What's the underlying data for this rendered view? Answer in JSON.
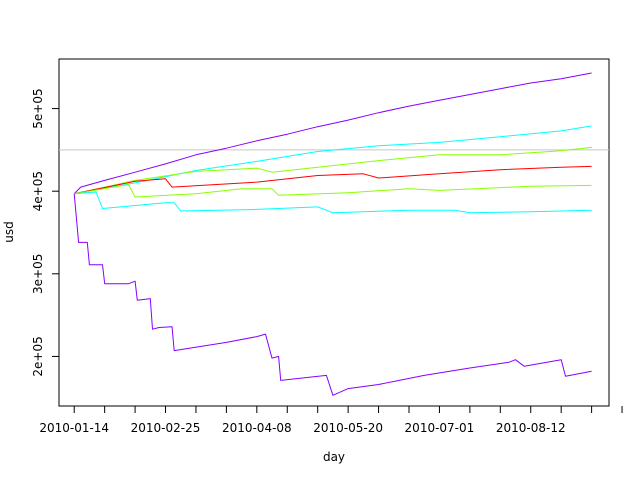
{
  "chart_data": {
    "type": "line",
    "title": "",
    "xlabel": "day",
    "ylabel": "usd",
    "x_ticks": [
      "2010-01-14",
      "2010-02-25",
      "2010-04-08",
      "2010-05-20",
      "2010-07-01",
      "2010-08-12"
    ],
    "y_ticks": [
      {
        "value": 200000,
        "label": "2e+05"
      },
      {
        "value": 300000,
        "label": "3e+05"
      },
      {
        "value": 400000,
        "label": "4e+05"
      },
      {
        "value": 500000,
        "label": "5e+05"
      }
    ],
    "xlim": [
      "2010-01-07",
      "2010-09-17"
    ],
    "ylim": [
      140000,
      560000
    ],
    "grid": false,
    "legend": "none",
    "reference_line": {
      "value": 450000,
      "color": "#c8c8c8"
    },
    "series": [
      {
        "color": "#8800ff",
        "points": [
          [
            "2010-01-14",
            397000
          ],
          [
            "2010-01-17",
            405000
          ],
          [
            "2010-01-28",
            413000
          ],
          [
            "2010-02-11",
            423000
          ],
          [
            "2010-02-25",
            433000
          ],
          [
            "2010-03-11",
            444000
          ],
          [
            "2010-03-25",
            452000
          ],
          [
            "2010-04-08",
            461000
          ],
          [
            "2010-04-22",
            469000
          ],
          [
            "2010-05-06",
            478000
          ],
          [
            "2010-05-20",
            486000
          ],
          [
            "2010-06-03",
            495000
          ],
          [
            "2010-06-17",
            503000
          ],
          [
            "2010-07-01",
            510000
          ],
          [
            "2010-07-15",
            517000
          ],
          [
            "2010-07-29",
            524000
          ],
          [
            "2010-08-12",
            531000
          ],
          [
            "2010-08-26",
            536000
          ],
          [
            "2010-09-09",
            543000
          ]
        ]
      },
      {
        "color": "#00ffff",
        "points": [
          [
            "2010-01-14",
            397000
          ],
          [
            "2010-02-11",
            410000
          ],
          [
            "2010-03-11",
            425000
          ],
          [
            "2010-04-08",
            436000
          ],
          [
            "2010-05-06",
            448000
          ],
          [
            "2010-06-03",
            455000
          ],
          [
            "2010-07-01",
            459000
          ],
          [
            "2010-07-29",
            466000
          ],
          [
            "2010-08-26",
            473000
          ],
          [
            "2010-09-09",
            479000
          ]
        ]
      },
      {
        "color": "#88ff00",
        "points": [
          [
            "2010-01-14",
            397000
          ],
          [
            "2010-02-11",
            413000
          ],
          [
            "2010-03-11",
            424000
          ],
          [
            "2010-04-08",
            428000
          ],
          [
            "2010-04-15",
            423000
          ],
          [
            "2010-05-06",
            429000
          ],
          [
            "2010-06-03",
            437000
          ],
          [
            "2010-07-01",
            444000
          ],
          [
            "2010-07-29",
            444000
          ],
          [
            "2010-08-26",
            449000
          ],
          [
            "2010-09-09",
            453000
          ]
        ]
      },
      {
        "color": "#ff0000",
        "points": [
          [
            "2010-01-14",
            397000
          ],
          [
            "2010-02-11",
            412000
          ],
          [
            "2010-02-25",
            415000
          ],
          [
            "2010-02-28",
            405000
          ],
          [
            "2010-04-08",
            411000
          ],
          [
            "2010-05-06",
            419000
          ],
          [
            "2010-05-27",
            421000
          ],
          [
            "2010-06-03",
            416000
          ],
          [
            "2010-07-01",
            421000
          ],
          [
            "2010-07-29",
            426000
          ],
          [
            "2010-08-26",
            429000
          ],
          [
            "2010-09-09",
            430000
          ]
        ]
      },
      {
        "color": "#88ff00",
        "points": [
          [
            "2010-01-14",
            397000
          ],
          [
            "2010-02-08",
            408000
          ],
          [
            "2010-02-11",
            393000
          ],
          [
            "2010-03-11",
            397000
          ],
          [
            "2010-04-01",
            403000
          ],
          [
            "2010-04-15",
            403000
          ],
          [
            "2010-04-18",
            395000
          ],
          [
            "2010-05-20",
            398000
          ],
          [
            "2010-06-17",
            403000
          ],
          [
            "2010-07-01",
            401000
          ],
          [
            "2010-08-12",
            406000
          ],
          [
            "2010-09-09",
            407000
          ]
        ]
      },
      {
        "color": "#00ffff",
        "points": [
          [
            "2010-01-14",
            397000
          ],
          [
            "2010-01-24",
            399000
          ],
          [
            "2010-01-27",
            379000
          ],
          [
            "2010-02-25",
            386000
          ],
          [
            "2010-03-01",
            386000
          ],
          [
            "2010-03-04",
            376000
          ],
          [
            "2010-04-08",
            378000
          ],
          [
            "2010-05-06",
            381000
          ],
          [
            "2010-05-13",
            374000
          ],
          [
            "2010-06-17",
            377000
          ],
          [
            "2010-07-08",
            377000
          ],
          [
            "2010-07-15",
            374000
          ],
          [
            "2010-08-12",
            375000
          ],
          [
            "2010-09-09",
            377000
          ]
        ]
      },
      {
        "color": "#8800ff",
        "points": [
          [
            "2010-01-14",
            397000
          ],
          [
            "2010-01-16",
            338000
          ],
          [
            "2010-01-20",
            338000
          ],
          [
            "2010-01-21",
            311000
          ],
          [
            "2010-01-27",
            311000
          ],
          [
            "2010-01-28",
            288000
          ],
          [
            "2010-02-08",
            288000
          ],
          [
            "2010-02-11",
            291000
          ],
          [
            "2010-02-12",
            268000
          ],
          [
            "2010-02-18",
            270000
          ],
          [
            "2010-02-19",
            233000
          ],
          [
            "2010-02-22",
            235000
          ],
          [
            "2010-02-28",
            236000
          ],
          [
            "2010-03-01",
            207000
          ],
          [
            "2010-03-25",
            217000
          ],
          [
            "2010-04-08",
            224000
          ],
          [
            "2010-04-12",
            227000
          ],
          [
            "2010-04-15",
            198000
          ],
          [
            "2010-04-18",
            200000
          ],
          [
            "2010-04-19",
            171000
          ],
          [
            "2010-05-10",
            177000
          ],
          [
            "2010-05-13",
            153000
          ],
          [
            "2010-05-20",
            161000
          ],
          [
            "2010-06-03",
            166000
          ],
          [
            "2010-06-24",
            177000
          ],
          [
            "2010-07-15",
            186000
          ],
          [
            "2010-08-02",
            193000
          ],
          [
            "2010-08-05",
            196000
          ],
          [
            "2010-08-09",
            188000
          ],
          [
            "2010-08-26",
            196000
          ],
          [
            "2010-08-28",
            176000
          ],
          [
            "2010-09-09",
            182000
          ]
        ]
      }
    ]
  }
}
